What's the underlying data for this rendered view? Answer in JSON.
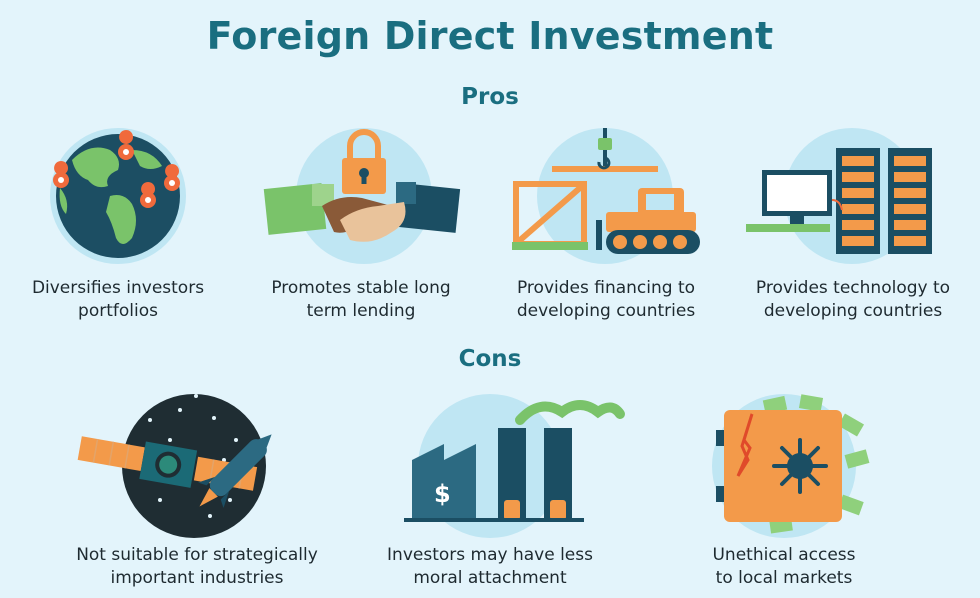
{
  "title": "Foreign Direct Investment",
  "pros": {
    "heading": "Pros",
    "items": [
      {
        "icon": "globe-icon",
        "line1": "Diversifies investors",
        "line2": "portfolios"
      },
      {
        "icon": "handshake-lock-icon",
        "line1": "Promotes stable long",
        "line2": "term lending"
      },
      {
        "icon": "construction-icon",
        "line1": "Provides financing to",
        "line2": "developing countries"
      },
      {
        "icon": "computer-server-icon",
        "line1": "Provides technology to",
        "line2": "developing countries"
      }
    ]
  },
  "cons": {
    "heading": "Cons",
    "items": [
      {
        "icon": "satellite-rocket-icon",
        "line1": "Not suitable for strategically",
        "line2": "important industries"
      },
      {
        "icon": "factory-icon",
        "line1": "Investors may have less",
        "line2": "moral attachment"
      },
      {
        "icon": "safe-icon",
        "line1": "Unethical access",
        "line2": "to local markets"
      }
    ]
  },
  "colors": {
    "background": "#e3f4fb",
    "heading": "#1a6e80",
    "circle": "#bfe6f3",
    "orange": "#f39a4a",
    "navy": "#1b4e63",
    "green": "#7ac36a"
  }
}
